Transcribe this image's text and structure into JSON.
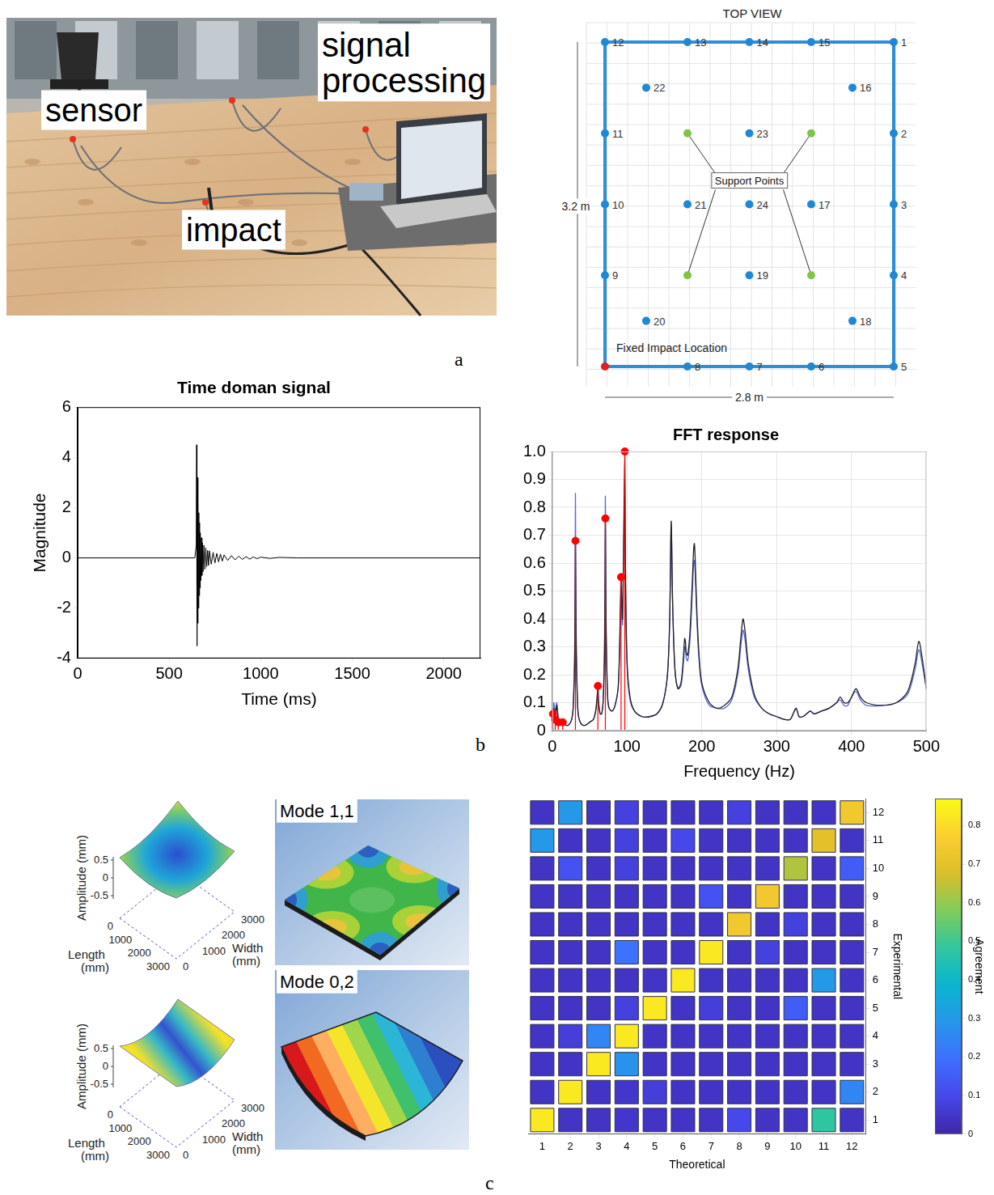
{
  "panel_labels": [
    "a",
    "b",
    "c"
  ],
  "photo": {
    "labels": [
      "sensor",
      "signal processing",
      "impact"
    ]
  },
  "top_view": {
    "title": "TOP VIEW",
    "xlim": [
      0,
      2.8
    ],
    "ylim": [
      0,
      3.2
    ],
    "width_label": "2.8 m",
    "height_label": "3.2 m",
    "support_label": "Support Points",
    "impact_label": "Fixed Impact Location",
    "sensors": [
      {
        "label": "1",
        "x": 2.8,
        "y": 3.2
      },
      {
        "label": "2",
        "x": 2.8,
        "y": 2.3
      },
      {
        "label": "3",
        "x": 2.8,
        "y": 1.6
      },
      {
        "label": "4",
        "x": 2.8,
        "y": 0.9
      },
      {
        "label": "5",
        "x": 2.8,
        "y": 0
      },
      {
        "label": "6",
        "x": 2.0,
        "y": 0
      },
      {
        "label": "7",
        "x": 1.4,
        "y": 0
      },
      {
        "label": "8",
        "x": 0.8,
        "y": 0
      },
      {
        "label": "9",
        "x": 0,
        "y": 0.9
      },
      {
        "label": "10",
        "x": 0,
        "y": 1.6
      },
      {
        "label": "11",
        "x": 0,
        "y": 2.3
      },
      {
        "label": "12",
        "x": 0,
        "y": 3.2
      },
      {
        "label": "13",
        "x": 0.8,
        "y": 3.2
      },
      {
        "label": "14",
        "x": 1.4,
        "y": 3.2
      },
      {
        "label": "15",
        "x": 2.0,
        "y": 3.2
      },
      {
        "label": "16",
        "x": 2.4,
        "y": 2.75
      },
      {
        "label": "17",
        "x": 2.0,
        "y": 1.6
      },
      {
        "label": "18",
        "x": 2.4,
        "y": 0.45
      },
      {
        "label": "19",
        "x": 1.4,
        "y": 0.9
      },
      {
        "label": "20",
        "x": 0.4,
        "y": 0.45
      },
      {
        "label": "21",
        "x": 0.8,
        "y": 1.6
      },
      {
        "label": "22",
        "x": 0.4,
        "y": 2.75
      },
      {
        "label": "23",
        "x": 1.4,
        "y": 2.3
      },
      {
        "label": "24",
        "x": 1.4,
        "y": 1.6
      }
    ],
    "supports": [
      {
        "x": 0.8,
        "y": 2.3
      },
      {
        "x": 2.0,
        "y": 2.3
      },
      {
        "x": 0.8,
        "y": 0.9
      },
      {
        "x": 2.0,
        "y": 0.9
      }
    ],
    "impact": {
      "x": 0,
      "y": 0
    }
  },
  "mode_shapes": [
    {
      "title": "Mode 1,1",
      "z_label": "Amplitude (mm)",
      "z_ticks": [
        0.5,
        0,
        -0.5
      ],
      "x_label": "Length (mm)",
      "x_ticks": [
        0,
        1000,
        2000,
        3000
      ],
      "y_label": "Width (mm)",
      "y_ticks": [
        3000,
        2000,
        1000,
        0
      ]
    },
    {
      "title": "Mode 0,2",
      "z_label": "Amplitude (mm)",
      "z_ticks": [
        0.5,
        0,
        -0.5
      ],
      "x_label": "Length (mm)",
      "x_ticks": [
        0,
        1000,
        2000,
        3000
      ],
      "y_label": "Width (mm)",
      "y_ticks": [
        3000,
        2000,
        1000,
        0
      ]
    }
  ],
  "chart_data": [
    {
      "type": "line",
      "title": "Time doman signal",
      "x_label": "Time (ms)",
      "y_label": "Magnitude",
      "x": [
        0,
        640,
        648,
        650,
        652,
        654,
        656,
        658,
        660,
        662,
        664,
        666,
        668,
        670,
        673,
        676,
        679,
        682,
        685,
        690,
        695,
        700,
        705,
        710,
        715,
        720,
        730,
        740,
        750,
        760,
        770,
        780,
        790,
        800,
        820,
        840,
        860,
        880,
        900,
        920,
        940,
        960,
        980,
        1000,
        1050,
        1100,
        1200,
        2200
      ],
      "series": [
        {
          "color": "#000000",
          "values": [
            0,
            0,
            0.5,
            4.5,
            -3.5,
            3.2,
            -2.6,
            2.4,
            -2.0,
            1.8,
            -1.5,
            1.4,
            -1.2,
            1.0,
            -0.9,
            0.8,
            -0.7,
            0.6,
            -0.55,
            0.5,
            -0.45,
            0.4,
            -0.35,
            0.3,
            -0.3,
            0.28,
            -0.25,
            0.22,
            -0.2,
            0.18,
            -0.16,
            0.15,
            -0.13,
            0.12,
            -0.1,
            0.09,
            -0.08,
            0.07,
            -0.06,
            0.05,
            -0.05,
            0.04,
            -0.03,
            0.03,
            -0.02,
            0.02,
            0,
            0
          ]
        }
      ],
      "xlim": [
        0,
        2200
      ],
      "xticks": [
        0,
        500,
        1000,
        1500,
        2000
      ],
      "ylim": [
        -4,
        6
      ],
      "yticks": [
        -4,
        -2,
        0,
        2,
        4,
        6
      ],
      "grid": false
    },
    {
      "type": "line",
      "title": "FFT response",
      "x_label": "Frequency (Hz)",
      "x": [
        0,
        2,
        4,
        6,
        8,
        10,
        14,
        18,
        22,
        26,
        28,
        30,
        31,
        32,
        34,
        36,
        40,
        45,
        50,
        55,
        58,
        60,
        61,
        62,
        64,
        66,
        68,
        70,
        71,
        72,
        74,
        76,
        80,
        84,
        88,
        90,
        92,
        93,
        94,
        96,
        97,
        98,
        100,
        104,
        110,
        120,
        130,
        140,
        148,
        154,
        157,
        159,
        161,
        164,
        168,
        172,
        175,
        177,
        178,
        179,
        181,
        184,
        187,
        189,
        190,
        191,
        193,
        196,
        200,
        210,
        220,
        230,
        240,
        248,
        252,
        255,
        258,
        262,
        270,
        280,
        290,
        300,
        310,
        318,
        322,
        326,
        330,
        335,
        340,
        345,
        350,
        360,
        370,
        380,
        385,
        390,
        395,
        400,
        406,
        412,
        420,
        440,
        460,
        475,
        485,
        490,
        495,
        500
      ],
      "series": [
        {
          "color": "#222222",
          "values": [
            0.02,
            0.08,
            0.05,
            0.09,
            0.04,
            0.03,
            0.03,
            0.02,
            0.02,
            0.04,
            0.08,
            0.25,
            0.68,
            0.3,
            0.08,
            0.04,
            0.02,
            0.02,
            0.03,
            0.04,
            0.07,
            0.12,
            0.16,
            0.1,
            0.06,
            0.06,
            0.1,
            0.3,
            0.76,
            0.35,
            0.12,
            0.08,
            0.07,
            0.09,
            0.15,
            0.3,
            0.55,
            0.45,
            0.4,
            0.8,
            1.0,
            0.55,
            0.25,
            0.12,
            0.07,
            0.05,
            0.05,
            0.06,
            0.1,
            0.2,
            0.4,
            0.75,
            0.45,
            0.22,
            0.15,
            0.17,
            0.25,
            0.33,
            0.32,
            0.28,
            0.27,
            0.35,
            0.52,
            0.65,
            0.67,
            0.62,
            0.45,
            0.28,
            0.17,
            0.1,
            0.08,
            0.09,
            0.12,
            0.22,
            0.33,
            0.4,
            0.35,
            0.24,
            0.13,
            0.08,
            0.06,
            0.05,
            0.04,
            0.04,
            0.06,
            0.08,
            0.05,
            0.05,
            0.06,
            0.07,
            0.06,
            0.07,
            0.08,
            0.1,
            0.12,
            0.1,
            0.1,
            0.12,
            0.15,
            0.12,
            0.1,
            0.09,
            0.1,
            0.14,
            0.24,
            0.32,
            0.25,
            0.15
          ]
        },
        {
          "color": "#5868dc",
          "values": [
            0.03,
            0.1,
            0.07,
            0.1,
            0.05,
            0.03,
            0.03,
            0.02,
            0.02,
            0.04,
            0.09,
            0.3,
            0.85,
            0.35,
            0.09,
            0.04,
            0.02,
            0.02,
            0.03,
            0.04,
            0.07,
            0.12,
            0.16,
            0.1,
            0.06,
            0.06,
            0.11,
            0.35,
            0.84,
            0.4,
            0.13,
            0.08,
            0.07,
            0.09,
            0.15,
            0.28,
            0.5,
            0.42,
            0.38,
            0.75,
            0.9,
            0.5,
            0.23,
            0.11,
            0.07,
            0.05,
            0.05,
            0.06,
            0.1,
            0.2,
            0.4,
            0.73,
            0.44,
            0.22,
            0.15,
            0.16,
            0.23,
            0.3,
            0.3,
            0.26,
            0.25,
            0.32,
            0.48,
            0.6,
            0.61,
            0.57,
            0.42,
            0.26,
            0.16,
            0.09,
            0.08,
            0.08,
            0.11,
            0.2,
            0.3,
            0.36,
            0.32,
            0.22,
            0.12,
            0.08,
            0.06,
            0.05,
            0.04,
            0.04,
            0.06,
            0.08,
            0.05,
            0.05,
            0.06,
            0.07,
            0.06,
            0.07,
            0.08,
            0.1,
            0.11,
            0.09,
            0.09,
            0.12,
            0.14,
            0.11,
            0.09,
            0.09,
            0.1,
            0.13,
            0.22,
            0.29,
            0.23,
            0.15
          ]
        },
        {
          "type": "stem",
          "color": "#ff0000",
          "marker": "circle",
          "x": [
            1,
            4,
            8,
            14,
            31,
            61,
            71,
            92,
            97
          ],
          "values": [
            0.06,
            0.04,
            0.03,
            0.03,
            0.68,
            0.16,
            0.76,
            0.55,
            1.0
          ]
        }
      ],
      "xlim": [
        0,
        500
      ],
      "xticks": [
        0,
        100,
        200,
        300,
        400,
        500
      ],
      "ylim": [
        0,
        1
      ],
      "yticks": [
        0,
        0.1,
        0.2,
        0.3,
        0.4,
        0.5,
        0.6,
        0.7,
        0.8,
        0.9,
        {
          "value": 1,
          "label": "1.0"
        }
      ],
      "grid": true
    },
    {
      "type": "heatmap",
      "x_label": "Theoretical",
      "y_label": "Experimental",
      "x": [
        1,
        2,
        3,
        4,
        5,
        6,
        7,
        8,
        9,
        10,
        11,
        12
      ],
      "y": [
        1,
        2,
        3,
        4,
        5,
        6,
        7,
        8,
        9,
        10,
        11,
        12
      ],
      "xlim": [
        0.5,
        12.5
      ],
      "xticks": [
        1,
        2,
        3,
        4,
        5,
        6,
        7,
        8,
        9,
        10,
        11,
        12
      ],
      "ylim": [
        0.5,
        12.5
      ],
      "yticks": [
        1,
        2,
        3,
        4,
        5,
        6,
        7,
        8,
        9,
        10,
        11,
        12
      ],
      "values": [
        [
          0.83,
          0.04,
          0.04,
          0.05,
          0.04,
          0.04,
          0.04,
          0.1,
          0.04,
          0.04,
          0.48,
          0.04
        ],
        [
          0.04,
          0.83,
          0.04,
          0.05,
          0.07,
          0.04,
          0.04,
          0.04,
          0.04,
          0.04,
          0.04,
          0.25
        ],
        [
          0.04,
          0.04,
          0.83,
          0.28,
          0.04,
          0.04,
          0.04,
          0.04,
          0.04,
          0.04,
          0.04,
          0.04
        ],
        [
          0.04,
          0.07,
          0.25,
          0.83,
          0.04,
          0.04,
          0.04,
          0.04,
          0.04,
          0.04,
          0.04,
          0.04
        ],
        [
          0.04,
          0.04,
          0.04,
          0.08,
          0.83,
          0.04,
          0.07,
          0.04,
          0.04,
          0.15,
          0.04,
          0.04
        ],
        [
          0.04,
          0.04,
          0.04,
          0.04,
          0.04,
          0.83,
          0.04,
          0.04,
          0.04,
          0.04,
          0.3,
          0.04
        ],
        [
          0.04,
          0.04,
          0.04,
          0.2,
          0.04,
          0.04,
          0.83,
          0.04,
          0.08,
          0.04,
          0.04,
          0.04
        ],
        [
          0.04,
          0.04,
          0.04,
          0.04,
          0.04,
          0.04,
          0.04,
          0.74,
          0.04,
          0.08,
          0.04,
          0.04
        ],
        [
          0.04,
          0.04,
          0.04,
          0.04,
          0.04,
          0.04,
          0.12,
          0.04,
          0.74,
          0.04,
          0.04,
          0.04
        ],
        [
          0.04,
          0.12,
          0.04,
          0.08,
          0.04,
          0.04,
          0.04,
          0.04,
          0.04,
          0.63,
          0.04,
          0.15
        ],
        [
          0.3,
          0.04,
          0.04,
          0.08,
          0.04,
          0.1,
          0.04,
          0.04,
          0.04,
          0.04,
          0.7,
          0.04
        ],
        [
          0.04,
          0.3,
          0.04,
          0.08,
          0.04,
          0.04,
          0.04,
          0.08,
          0.04,
          0.04,
          0.04,
          0.74
        ]
      ],
      "colorbar": {
        "label": "Agreement",
        "lim": [
          0,
          0.87
        ],
        "ticks": [
          0,
          0.1,
          0.2,
          0.3,
          0.4,
          0.5,
          0.6,
          0.7,
          0.8
        ]
      },
      "grid": false
    }
  ]
}
